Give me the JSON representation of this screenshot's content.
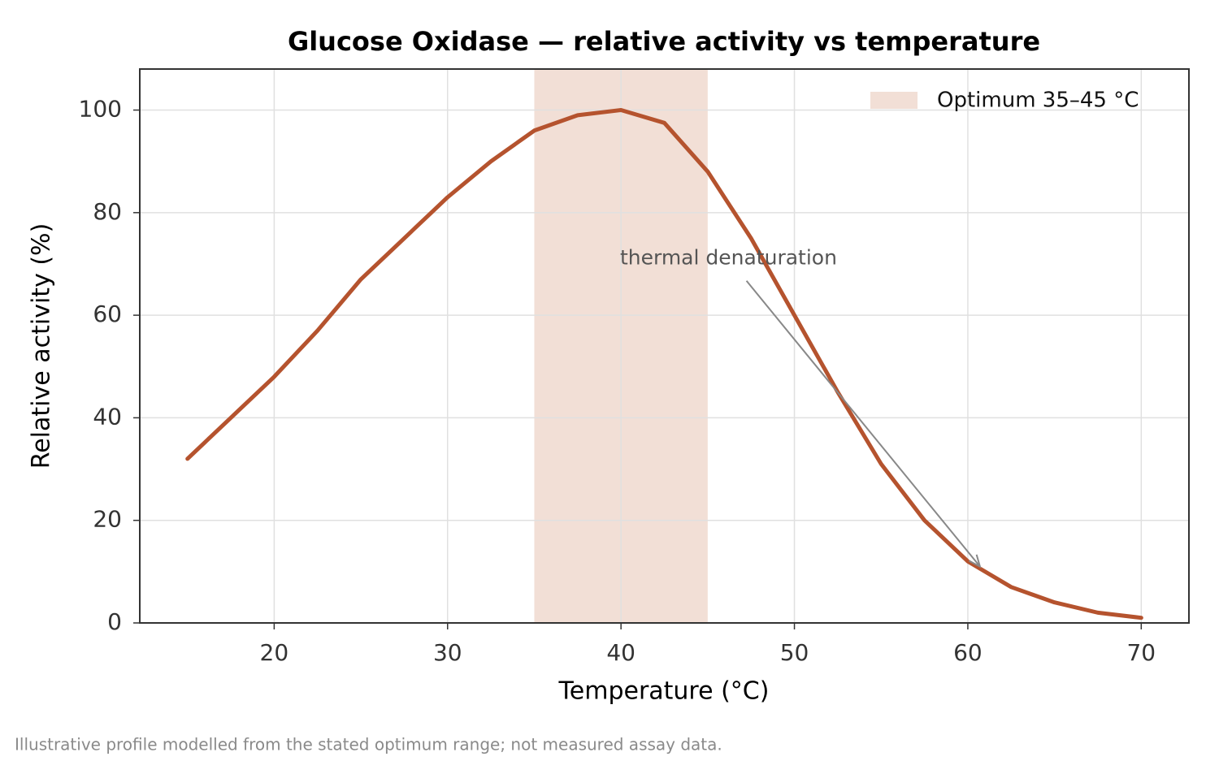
{
  "chart_data": {
    "type": "line",
    "title": "Glucose Oxidase — relative activity vs temperature",
    "xlabel": "Temperature (°C)",
    "ylabel": "Relative activity (%)",
    "footnote": "Illustrative profile modelled from the stated optimum range; not measured assay data.",
    "x": [
      15,
      17.5,
      20,
      22.5,
      25,
      27.5,
      30,
      32.5,
      35,
      37.5,
      40,
      42.5,
      45,
      47.5,
      50,
      52.5,
      55,
      57.5,
      60,
      62.5,
      65,
      67.5,
      70
    ],
    "series": [
      {
        "color": "#b5532e",
        "values": [
          32,
          40,
          48,
          57,
          67,
          75,
          83,
          90,
          96,
          99,
          100,
          97.5,
          88,
          75,
          60,
          45,
          31,
          20,
          12,
          7,
          4,
          2,
          1
        ]
      }
    ],
    "highlight": {
      "label": "Optimum 35–45 °C",
      "from": 35,
      "to": 45,
      "color": "#f2dfd6"
    },
    "annotation": {
      "text": "thermal denaturation",
      "xytext": [
        46.2,
        71
      ],
      "xy": [
        60.7,
        11
      ]
    },
    "xlim": [
      12.25,
      72.75
    ],
    "ylim": [
      0,
      108
    ],
    "xticks": [
      20,
      30,
      40,
      50,
      60,
      70
    ],
    "yticks": [
      0,
      20,
      40,
      60,
      80,
      100
    ],
    "grid": true,
    "legend": "upper right"
  }
}
